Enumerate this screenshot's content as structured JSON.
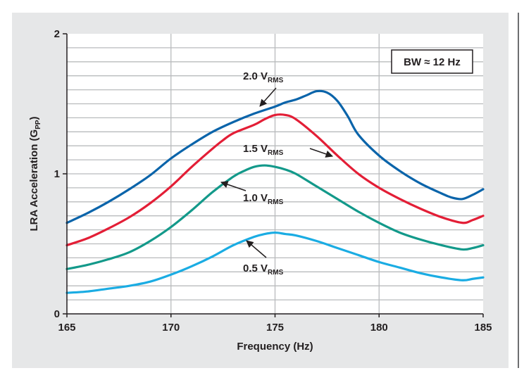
{
  "chart_data": {
    "type": "line",
    "xlabel": "Frequency (Hz)",
    "ylabel_main": "LRA Acceleration (G",
    "ylabel_sub": "PP",
    "ylabel_close": ")",
    "xlim": [
      165,
      185
    ],
    "ylim": [
      0,
      2
    ],
    "xticks": [
      165,
      170,
      175,
      180,
      185
    ],
    "yticks": [
      0,
      1,
      2
    ],
    "grid": true,
    "annotation_box": "BW ≈ 12 Hz",
    "series": [
      {
        "name_main": "2.0 V",
        "name_sub": "RMS",
        "color": "#0a64aa",
        "x": [
          165,
          166,
          167,
          168,
          169,
          170,
          171,
          172,
          173,
          174,
          175,
          175.5,
          176,
          176.5,
          177,
          177.5,
          178,
          178.5,
          179,
          180,
          181,
          182,
          183,
          183.5,
          184,
          184.5,
          185
        ],
        "y": [
          0.65,
          0.72,
          0.8,
          0.89,
          0.99,
          1.11,
          1.21,
          1.3,
          1.37,
          1.43,
          1.48,
          1.51,
          1.53,
          1.56,
          1.59,
          1.58,
          1.52,
          1.41,
          1.28,
          1.13,
          1.02,
          0.93,
          0.86,
          0.83,
          0.82,
          0.85,
          0.89
        ]
      },
      {
        "name_main": "1.5 V",
        "name_sub": "RMS",
        "color": "#e31e36",
        "x": [
          165,
          166,
          167,
          168,
          169,
          170,
          171,
          172,
          172.5,
          173,
          174,
          174.5,
          175,
          175.5,
          176,
          177,
          178,
          179,
          180,
          181,
          182,
          183,
          184,
          184.5,
          185
        ],
        "y": [
          0.49,
          0.54,
          0.61,
          0.69,
          0.79,
          0.91,
          1.05,
          1.18,
          1.24,
          1.29,
          1.35,
          1.39,
          1.42,
          1.42,
          1.39,
          1.27,
          1.13,
          1.0,
          0.9,
          0.82,
          0.75,
          0.69,
          0.65,
          0.67,
          0.7
        ]
      },
      {
        "name_main": "1.0 V",
        "name_sub": "RMS",
        "color": "#13998a",
        "x": [
          165,
          166,
          167,
          168,
          169,
          170,
          171,
          172,
          173,
          173.5,
          174,
          174.5,
          175,
          175.5,
          176,
          177,
          178,
          179,
          180,
          181,
          182,
          183,
          184,
          184.5,
          185
        ],
        "y": [
          0.32,
          0.35,
          0.39,
          0.44,
          0.52,
          0.62,
          0.74,
          0.87,
          0.98,
          1.02,
          1.05,
          1.06,
          1.05,
          1.03,
          1.0,
          0.91,
          0.82,
          0.73,
          0.65,
          0.58,
          0.53,
          0.49,
          0.46,
          0.47,
          0.49
        ]
      },
      {
        "name_main": "0.5 V",
        "name_sub": "RMS",
        "color": "#1aace3",
        "x": [
          165,
          166,
          167,
          168,
          169,
          170,
          171,
          172,
          173,
          174,
          174.5,
          175,
          175.5,
          176,
          177,
          178,
          179,
          180,
          181,
          182,
          183,
          184,
          184.5,
          185
        ],
        "y": [
          0.15,
          0.16,
          0.18,
          0.2,
          0.23,
          0.28,
          0.34,
          0.41,
          0.49,
          0.55,
          0.57,
          0.58,
          0.57,
          0.56,
          0.52,
          0.47,
          0.42,
          0.37,
          0.33,
          0.29,
          0.26,
          0.24,
          0.25,
          0.26
        ]
      }
    ]
  }
}
